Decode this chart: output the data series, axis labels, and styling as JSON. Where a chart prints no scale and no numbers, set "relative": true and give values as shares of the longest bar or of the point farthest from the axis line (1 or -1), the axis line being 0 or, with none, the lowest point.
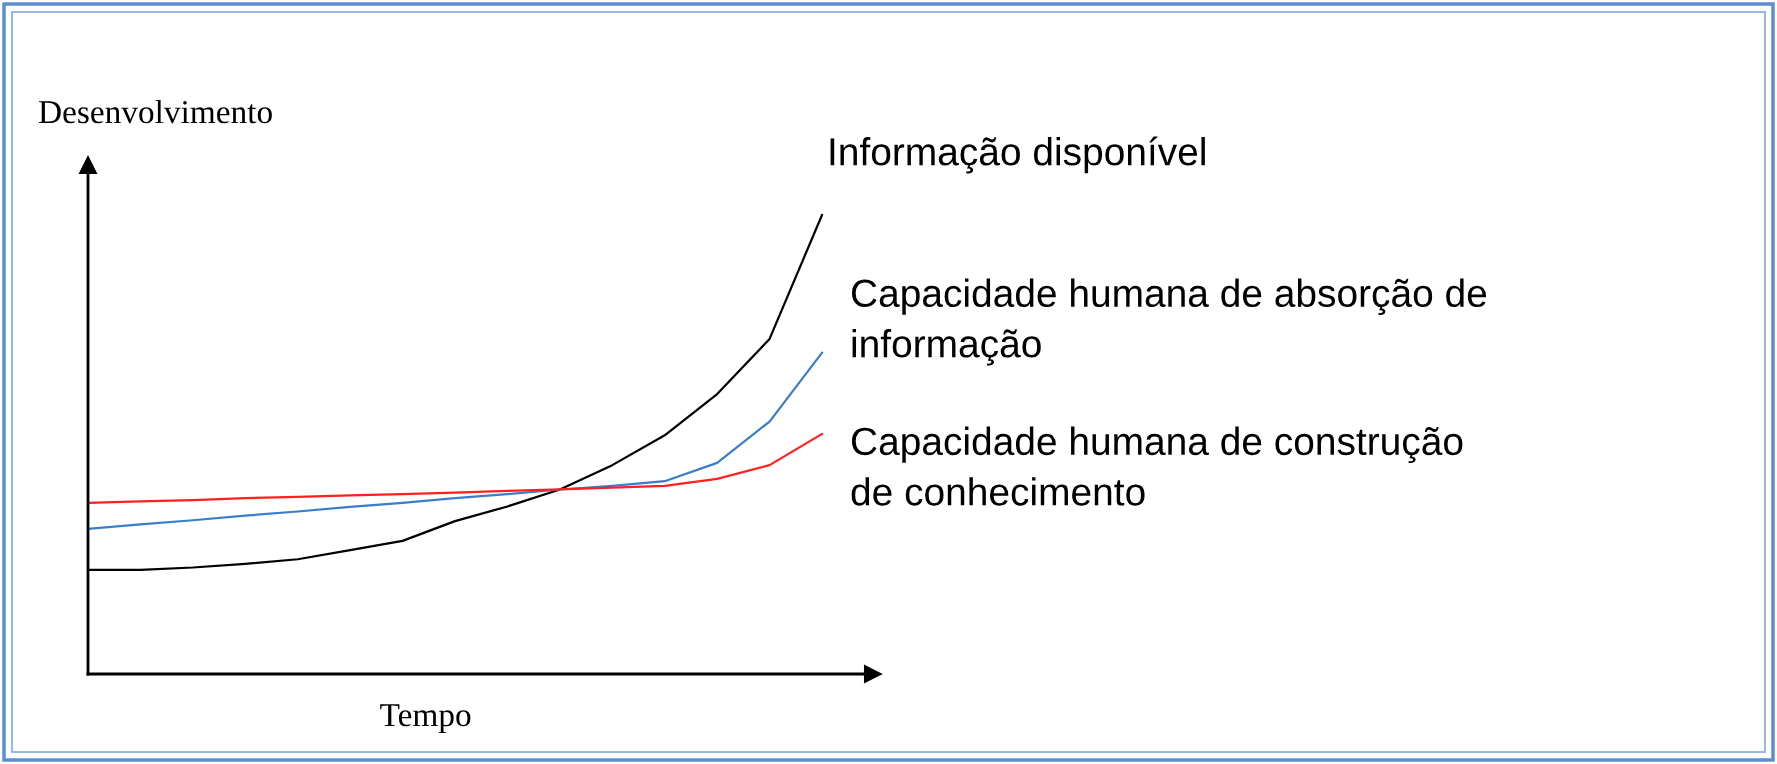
{
  "chart_data": {
    "type": "line",
    "relative": true,
    "xlabel": "Tempo",
    "ylabel": "Desenvolvimento",
    "categories": [
      null,
      null,
      null,
      null,
      null,
      null,
      null,
      null,
      null,
      null,
      null,
      null,
      null,
      null,
      null
    ],
    "series": [
      {
        "name": "Informação disponível",
        "color": "#000000",
        "values": [
          0.227,
          0.227,
          0.232,
          0.24,
          0.25,
          0.27,
          0.29,
          0.333,
          0.365,
          0.402,
          0.455,
          0.52,
          0.61,
          0.73,
          1.0
        ]
      },
      {
        "name": "Capacidade humana de absorção de informação",
        "color": "#3a7dc9",
        "values": [
          0.316,
          0.326,
          0.335,
          0.345,
          0.354,
          0.364,
          0.373,
          0.383,
          0.392,
          0.402,
          0.41,
          0.42,
          0.46,
          0.55,
          0.7
        ]
      },
      {
        "name": "Capacidade humana de construção de conhecimento",
        "color": "#ff2020",
        "values": [
          0.373,
          0.376,
          0.379,
          0.383,
          0.386,
          0.389,
          0.392,
          0.395,
          0.399,
          0.402,
          0.406,
          0.41,
          0.425,
          0.455,
          0.523
        ]
      }
    ],
    "marker": "none",
    "line_style": "solid"
  }
}
